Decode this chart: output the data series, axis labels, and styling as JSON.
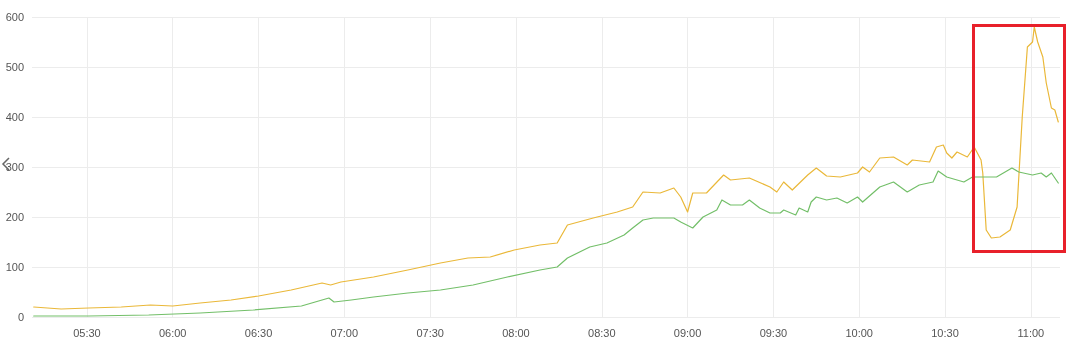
{
  "chart_data": {
    "type": "line",
    "xlim": [
      5.18,
      11.17
    ],
    "xticks": [
      {
        "value": 5.5,
        "label": "05:30"
      },
      {
        "value": 6,
        "label": "06:00"
      },
      {
        "value": 6.5,
        "label": "06:30"
      },
      {
        "value": 7,
        "label": "07:00"
      },
      {
        "value": 7.5,
        "label": "07:30"
      },
      {
        "value": 8,
        "label": "08:00"
      },
      {
        "value": 8.5,
        "label": "08:30"
      },
      {
        "value": 9,
        "label": "09:00"
      },
      {
        "value": 9.5,
        "label": "09:30"
      },
      {
        "value": 10,
        "label": "10:00"
      },
      {
        "value": 10.5,
        "label": "10:30"
      },
      {
        "value": 11,
        "label": "11:00"
      }
    ],
    "ylim": [
      0,
      600
    ],
    "yticks": [
      0,
      100,
      200,
      300,
      400,
      500,
      600
    ],
    "grid": true,
    "marker": "none",
    "line_style": "solid",
    "series": [
      {
        "color": "#eab839",
        "x": [
          5.19,
          5.35,
          5.51,
          5.7,
          5.87,
          6.0,
          6.16,
          6.34,
          6.5,
          6.69,
          6.87,
          6.92,
          6.98,
          7.17,
          7.37,
          7.56,
          7.72,
          7.85,
          7.99,
          8.14,
          8.24,
          8.3,
          8.45,
          8.59,
          8.68,
          8.74,
          8.84,
          8.92,
          8.96,
          9.0,
          9.03,
          9.11,
          9.21,
          9.25,
          9.36,
          9.48,
          9.52,
          9.56,
          9.61,
          9.7,
          9.75,
          9.81,
          9.89,
          9.99,
          10.02,
          10.06,
          10.12,
          10.2,
          10.28,
          10.31,
          10.41,
          10.45,
          10.49,
          10.51,
          10.54,
          10.57,
          10.63,
          10.67,
          10.71,
          10.72,
          10.74,
          10.77,
          10.82,
          10.88,
          10.92,
          10.95,
          10.98,
          11.01,
          11.02,
          11.04,
          11.07,
          11.09,
          11.12,
          11.14,
          11.16
        ],
        "values": [
          20,
          16,
          18,
          20,
          24,
          22,
          28,
          34,
          42,
          54,
          68,
          64,
          70,
          80,
          94,
          108,
          118,
          120,
          134,
          144,
          148,
          184,
          198,
          210,
          220,
          250,
          248,
          258,
          240,
          210,
          248,
          248,
          284,
          274,
          278,
          260,
          250,
          270,
          254,
          284,
          298,
          282,
          280,
          288,
          300,
          290,
          318,
          320,
          304,
          314,
          310,
          340,
          344,
          328,
          318,
          330,
          320,
          340,
          314,
          288,
          174,
          158,
          160,
          174,
          220,
          400,
          540,
          550,
          580,
          550,
          520,
          468,
          418,
          414,
          390
        ]
      },
      {
        "color": "#73bf69",
        "x": [
          5.19,
          5.51,
          5.86,
          6.16,
          6.47,
          6.75,
          6.91,
          6.94,
          7.04,
          7.17,
          7.37,
          7.56,
          7.75,
          7.95,
          8.14,
          8.24,
          8.3,
          8.43,
          8.53,
          8.63,
          8.68,
          8.74,
          8.8,
          8.92,
          8.96,
          9.03,
          9.09,
          9.17,
          9.2,
          9.25,
          9.32,
          9.36,
          9.42,
          9.48,
          9.54,
          9.56,
          9.63,
          9.65,
          9.7,
          9.72,
          9.75,
          9.81,
          9.87,
          9.93,
          9.99,
          10.02,
          10.12,
          10.2,
          10.28,
          10.35,
          10.43,
          10.46,
          10.51,
          10.61,
          10.66,
          10.8,
          10.89,
          10.93,
          11.01,
          11.06,
          11.09,
          11.12,
          11.16
        ],
        "values": [
          2,
          2,
          4,
          8,
          14,
          22,
          38,
          30,
          34,
          40,
          48,
          54,
          64,
          80,
          94,
          100,
          118,
          140,
          148,
          164,
          178,
          194,
          198,
          198,
          190,
          178,
          200,
          214,
          234,
          224,
          224,
          234,
          218,
          208,
          208,
          214,
          204,
          218,
          210,
          230,
          240,
          234,
          238,
          228,
          240,
          230,
          260,
          270,
          250,
          264,
          270,
          292,
          280,
          270,
          280,
          280,
          298,
          290,
          284,
          288,
          280,
          288,
          268
        ]
      }
    ]
  }
}
